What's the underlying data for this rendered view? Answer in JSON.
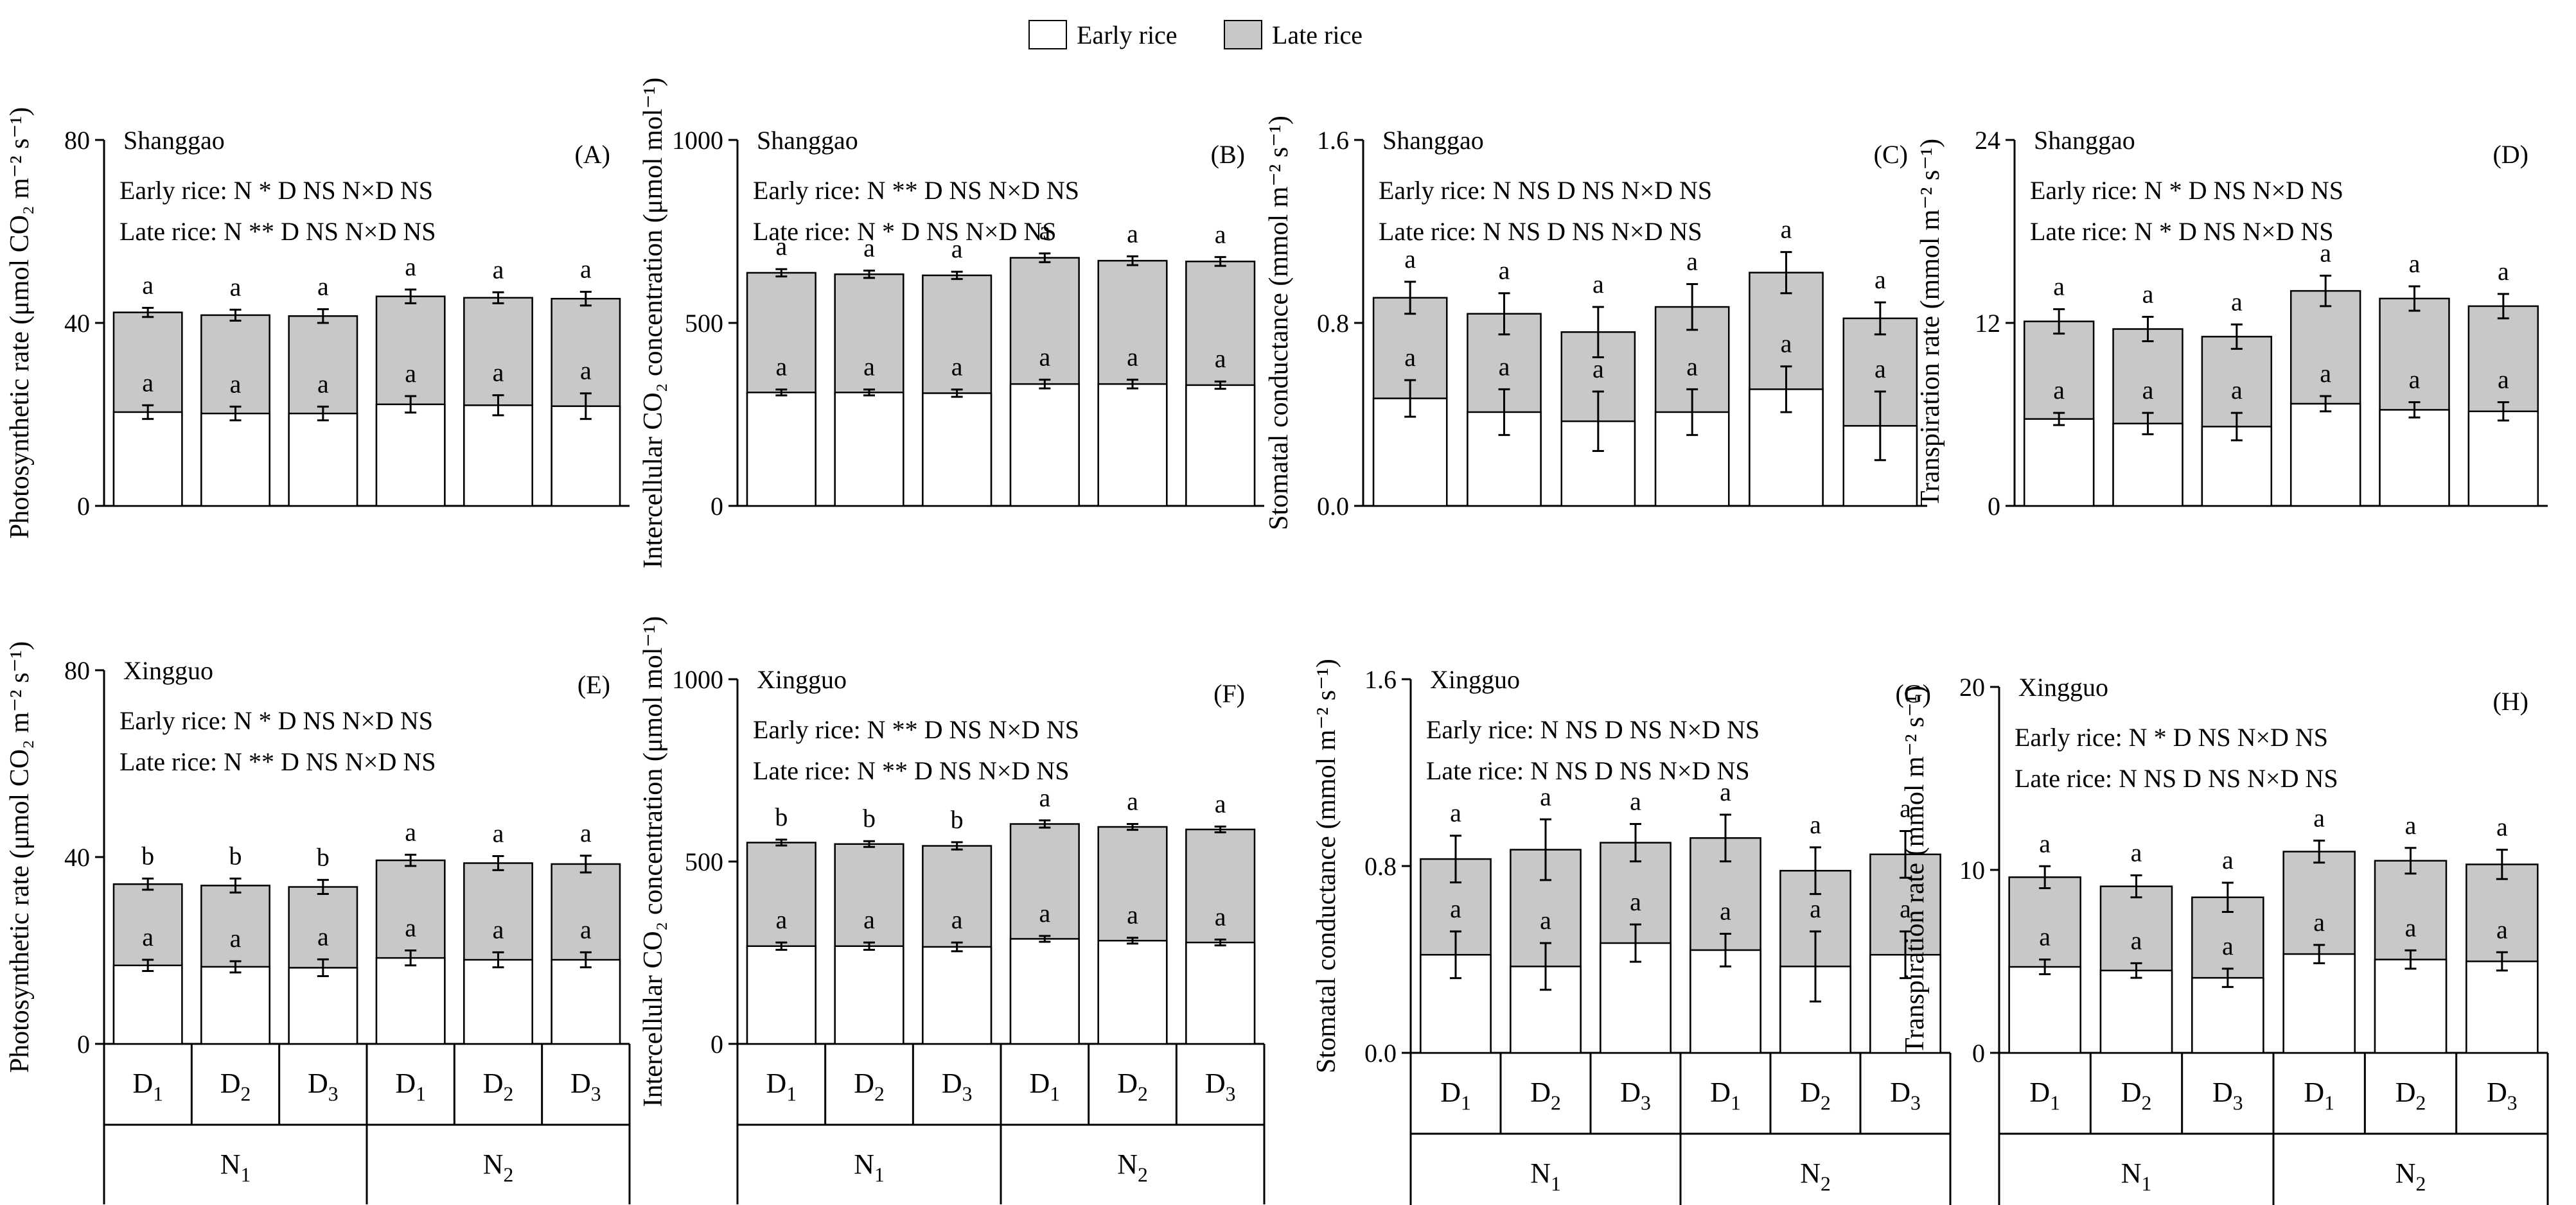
{
  "legend": {
    "items": [
      {
        "label": "Early rice",
        "color": "#ffffff"
      },
      {
        "label": "Late rice",
        "color": "#c8c8c8"
      }
    ]
  },
  "colors": {
    "early": "#ffffff",
    "late": "#c8c8c8",
    "stroke": "#000000"
  },
  "chart_data": [
    {
      "type": "bar",
      "stacked": true,
      "panel": "(A)",
      "site": "Shanggao",
      "ylabel": "Photosynthetic rate (μmol CO₂ m⁻² s⁻¹)",
      "ylim": [
        0,
        80
      ],
      "yticks": [
        "0",
        "40",
        "80"
      ],
      "categories": [
        "D1",
        "D2",
        "D3",
        "D1",
        "D2",
        "D3"
      ],
      "groups": [],
      "stats": [
        "Early rice: N *  D NS N×D NS",
        "Late rice:  N ** D NS N×D  NS"
      ],
      "series": [
        {
          "name": "Early rice",
          "values": [
            20.5,
            20.2,
            20.2,
            22.2,
            22.0,
            21.8
          ],
          "err": [
            1.5,
            1.5,
            1.5,
            1.8,
            2.2,
            2.8
          ],
          "letters": [
            "a",
            "a",
            "a",
            "a",
            "a",
            "a"
          ]
        },
        {
          "name": "Late rice",
          "values": [
            42.3,
            41.7,
            41.5,
            45.8,
            45.5,
            45.3
          ],
          "err": [
            1.0,
            1.2,
            1.5,
            1.5,
            1.2,
            1.5
          ],
          "letters": [
            "a",
            "a",
            "a",
            "a",
            "a",
            "a"
          ]
        }
      ]
    },
    {
      "type": "bar",
      "stacked": true,
      "panel": "(B)",
      "site": "Shanggao",
      "ylabel": "Intercellular CO₂ concentration (μmol mol⁻¹)",
      "ylim": [
        0,
        1000
      ],
      "yticks": [
        "0",
        "500",
        "1000"
      ],
      "categories": [
        "D1",
        "D2",
        "D3",
        "D1",
        "D2",
        "D3"
      ],
      "groups": [],
      "stats": [
        "Early rice: N ** D NS N×D NS",
        "Late rice:  N  *  D NS  N×D NS"
      ],
      "series": [
        {
          "name": "Early rice",
          "values": [
            310,
            310,
            308,
            333,
            333,
            330
          ],
          "err": [
            8,
            8,
            10,
            12,
            12,
            10
          ],
          "letters": [
            "a",
            "a",
            "a",
            "a",
            "a",
            "a"
          ]
        },
        {
          "name": "Late rice",
          "values": [
            637,
            633,
            630,
            678,
            670,
            668
          ],
          "err": [
            10,
            10,
            10,
            12,
            12,
            12
          ],
          "letters": [
            "a",
            "a",
            "a",
            "a",
            "a",
            "a"
          ]
        }
      ]
    },
    {
      "type": "bar",
      "stacked": true,
      "panel": "(C)",
      "site": "Shanggao",
      "ylabel": "Stomatal conductance (mmol m⁻² s⁻¹)",
      "ylim": [
        0,
        1.6
      ],
      "yticks": [
        "0.0",
        "0.8",
        "1.6"
      ],
      "categories": [
        "D1",
        "D2",
        "D3",
        "D1",
        "D2",
        "D3"
      ],
      "groups": [],
      "stats": [
        "Early rice: N NS D NS N×D NS",
        "Late rice:  N NS D NS N×D  NS"
      ],
      "series": [
        {
          "name": "Early rice",
          "values": [
            0.47,
            0.41,
            0.37,
            0.41,
            0.51,
            0.35
          ],
          "err": [
            0.08,
            0.1,
            0.13,
            0.1,
            0.1,
            0.15
          ],
          "letters": [
            "a",
            "a",
            "a",
            "a",
            "a",
            "a"
          ]
        },
        {
          "name": "Late rice",
          "values": [
            0.91,
            0.84,
            0.76,
            0.87,
            1.02,
            0.82
          ],
          "err": [
            0.07,
            0.09,
            0.11,
            0.1,
            0.09,
            0.07
          ],
          "letters": [
            "a",
            "a",
            "a",
            "a",
            "a",
            "a"
          ]
        }
      ]
    },
    {
      "type": "bar",
      "stacked": true,
      "panel": "(D)",
      "site": "Shanggao",
      "ylabel": "Transpiration rate (mmol m⁻² s⁻¹)",
      "ylim": [
        0,
        24
      ],
      "yticks": [
        "0",
        "12",
        "24"
      ],
      "categories": [
        "D1",
        "D2",
        "D3",
        "D1",
        "D2",
        "D3"
      ],
      "groups": [],
      "stats": [
        "Early rice: N * D NS N×D NS",
        "Late rice:  N * D NS N×D  NS"
      ],
      "series": [
        {
          "name": "Early rice",
          "values": [
            5.7,
            5.4,
            5.2,
            6.7,
            6.3,
            6.2
          ],
          "err": [
            0.4,
            0.7,
            0.9,
            0.5,
            0.5,
            0.6
          ],
          "letters": [
            "a",
            "a",
            "a",
            "a",
            "a",
            "a"
          ]
        },
        {
          "name": "Late rice",
          "values": [
            12.1,
            11.6,
            11.1,
            14.1,
            13.6,
            13.1
          ],
          "err": [
            0.8,
            0.8,
            0.8,
            1.0,
            0.8,
            0.8
          ],
          "letters": [
            "a",
            "a",
            "a",
            "a",
            "a",
            "a"
          ]
        }
      ]
    },
    {
      "type": "bar",
      "stacked": true,
      "panel": "(E)",
      "site": "Xingguo",
      "ylabel": "Photosynthetic rate (μmol CO₂ m⁻² s⁻¹)",
      "ylim": [
        0,
        80
      ],
      "yticks": [
        "0",
        "40",
        "80"
      ],
      "categories": [
        "D1",
        "D2",
        "D3",
        "D1",
        "D2",
        "D3"
      ],
      "groups": [
        "N1",
        "N2"
      ],
      "stats": [
        "Early rice: N * D NS N×D NS",
        "Late rice:  N ** D NS N×D NS"
      ],
      "series": [
        {
          "name": "Early rice",
          "values": [
            16.8,
            16.5,
            16.3,
            18.4,
            18.0,
            18.0
          ],
          "err": [
            1.2,
            1.2,
            1.8,
            1.6,
            1.6,
            1.6
          ],
          "letters": [
            "a",
            "a",
            "a",
            "a",
            "a",
            "a"
          ]
        },
        {
          "name": "Late rice",
          "values": [
            34.2,
            33.9,
            33.6,
            39.3,
            38.7,
            38.5
          ],
          "err": [
            1.2,
            1.5,
            1.5,
            1.2,
            1.5,
            1.8
          ],
          "letters": [
            "b",
            "b",
            "b",
            "a",
            "a",
            "a"
          ]
        }
      ]
    },
    {
      "type": "bar",
      "stacked": true,
      "panel": "(F)",
      "site": "Xingguo",
      "ylabel": "Intercellular CO₂ concentration (μmol mol⁻¹)",
      "ylim": [
        0,
        1000
      ],
      "yticks": [
        "0",
        "500",
        "1000"
      ],
      "categories": [
        "D1",
        "D2",
        "D3",
        "D1",
        "D2",
        "D3"
      ],
      "groups": [
        "N1",
        "N2"
      ],
      "stats": [
        "Early rice: N ** D NS N×D NS",
        "Late rice:  N ** D NS N×D  NS"
      ],
      "series": [
        {
          "name": "Early rice",
          "values": [
            268,
            268,
            266,
            288,
            283,
            278
          ],
          "err": [
            10,
            10,
            12,
            8,
            8,
            8
          ],
          "letters": [
            "a",
            "a",
            "a",
            "a",
            "a",
            "a"
          ]
        },
        {
          "name": "Late rice",
          "values": [
            552,
            548,
            543,
            603,
            595,
            588
          ],
          "err": [
            8,
            8,
            10,
            10,
            8,
            8
          ],
          "letters": [
            "b",
            "b",
            "b",
            "a",
            "a",
            "a"
          ]
        }
      ]
    },
    {
      "type": "bar",
      "stacked": true,
      "panel": "(G)",
      "site": "Xingguo",
      "ylabel": "Stomatal conductance (mmol m⁻² s⁻¹)",
      "ylim": [
        0,
        1.6
      ],
      "yticks": [
        "0.0",
        "0.8",
        "1.6"
      ],
      "categories": [
        "D1",
        "D2",
        "D3",
        "D1",
        "D2",
        "D3"
      ],
      "groups": [
        "N1",
        "N2"
      ],
      "stats": [
        "Early rice: N NS D NS N×D NS",
        "Late rice:  N NS D NS N×D  NS"
      ],
      "series": [
        {
          "name": "Early rice",
          "values": [
            0.42,
            0.37,
            0.47,
            0.44,
            0.37,
            0.42
          ],
          "err": [
            0.1,
            0.1,
            0.08,
            0.07,
            0.15,
            0.1
          ],
          "letters": [
            "a",
            "a",
            "a",
            "a",
            "a",
            "a"
          ]
        },
        {
          "name": "Late rice",
          "values": [
            0.83,
            0.87,
            0.9,
            0.92,
            0.78,
            0.85
          ],
          "err": [
            0.1,
            0.13,
            0.08,
            0.1,
            0.1,
            0.1
          ],
          "letters": [
            "a",
            "a",
            "a",
            "a",
            "a",
            "a"
          ]
        }
      ]
    },
    {
      "type": "bar",
      "stacked": true,
      "panel": "(H)",
      "site": "Xingguo",
      "ylabel": "Transpiration rate (mmol m⁻² s⁻¹)",
      "ylim": [
        0,
        20
      ],
      "yticks": [
        "0",
        "10",
        "20"
      ],
      "categories": [
        "D1",
        "D2",
        "D3",
        "D1",
        "D2",
        "D3"
      ],
      "groups": [
        "N1",
        "N2"
      ],
      "stats": [
        "Early rice: N * D NS N×D NS",
        "Late rice:  N NS D NS N×D  NS"
      ],
      "series": [
        {
          "name": "Early rice",
          "values": [
            4.7,
            4.5,
            4.1,
            5.4,
            5.1,
            5.0
          ],
          "err": [
            0.4,
            0.4,
            0.5,
            0.5,
            0.5,
            0.5
          ],
          "letters": [
            "a",
            "a",
            "a",
            "a",
            "a",
            "a"
          ]
        },
        {
          "name": "Late rice",
          "values": [
            9.6,
            9.1,
            8.5,
            11.0,
            10.5,
            10.3
          ],
          "err": [
            0.6,
            0.6,
            0.8,
            0.6,
            0.7,
            0.8
          ],
          "letters": [
            "a",
            "a",
            "a",
            "a",
            "a",
            "a"
          ]
        }
      ]
    }
  ]
}
